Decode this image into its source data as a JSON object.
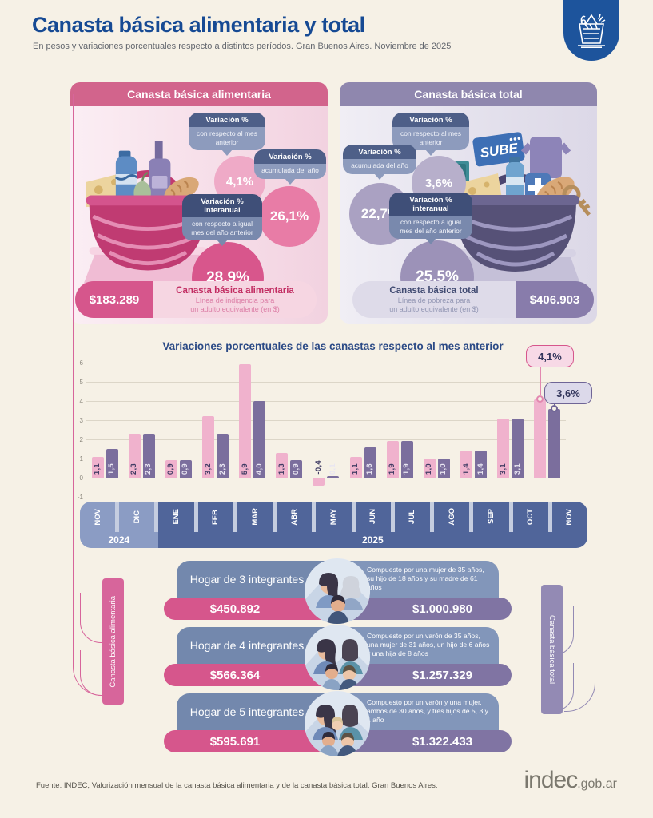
{
  "header": {
    "title": "Canasta básica alimentaria y total",
    "subtitle": "En pesos y variaciones porcentuales respecto a distintos períodos. Gran Buenos Aires. Noviembre de 2025"
  },
  "panels": {
    "alimentaria": {
      "title": "Canasta básica alimentaria",
      "variations": [
        {
          "title": "Variación %",
          "sub": "con respecto al mes anterior",
          "value": "4,1%"
        },
        {
          "title": "Variación %",
          "sub": "acumulada del año",
          "value": "26,1%"
        },
        {
          "title": "Variación % interanual",
          "sub": "con respecto a igual mes del año anterior",
          "value": "28,9%"
        }
      ],
      "amount": "$183.289",
      "footer_title": "Canasta básica alimentaria",
      "footer_sub1": "Línea de indigencia para",
      "footer_sub2": "un adulto equivalente (en $)"
    },
    "total": {
      "title": "Canasta básica total",
      "variations": [
        {
          "title": "Variación %",
          "sub": "con respecto al mes anterior",
          "value": "3,6%"
        },
        {
          "title": "Variación %",
          "sub": "acumulada del año",
          "value": "22,7%"
        },
        {
          "title": "Variación % interanual",
          "sub": "con respecto a igual mes del año anterior",
          "value": "25,5%"
        }
      ],
      "amount": "$406.903",
      "footer_title": "Canasta básica total",
      "footer_sub1": "Línea de pobreza para",
      "footer_sub2": "un adulto equivalente (en $)",
      "sube_label": "SUBE"
    }
  },
  "chart_data": {
    "type": "bar",
    "title": "Variaciones porcentuales de las canastas respecto al mes anterior",
    "categories": [
      "NOV",
      "DIC",
      "ENE",
      "FEB",
      "MAR",
      "ABR",
      "MAY",
      "JUN",
      "JUL",
      "AGO",
      "SEP",
      "OCT",
      "NOV"
    ],
    "year_groups": [
      {
        "label": "2024",
        "count": 2
      },
      {
        "label": "2025",
        "count": 11
      }
    ],
    "series": [
      {
        "name": "Canasta básica alimentaria",
        "color": "#f0b2cd",
        "values": [
          1.1,
          2.3,
          0.9,
          3.2,
          5.9,
          1.3,
          -0.4,
          1.1,
          1.9,
          1.0,
          1.4,
          3.1,
          4.1
        ]
      },
      {
        "name": "Canasta básica total",
        "color": "#7b6e9d",
        "values": [
          1.5,
          2.3,
          0.9,
          2.3,
          4.0,
          0.9,
          0.1,
          1.6,
          1.9,
          1.0,
          1.4,
          3.1,
          3.6
        ]
      }
    ],
    "bar_labels": [
      [
        "1,1",
        "1,5"
      ],
      [
        "2,3",
        "2,3"
      ],
      [
        "0,9",
        "0,9"
      ],
      [
        "3,2",
        "2,3"
      ],
      [
        "5,9",
        "4,0"
      ],
      [
        "1,3",
        "0,9"
      ],
      [
        "-0,4",
        "0,1"
      ],
      [
        "1,1",
        "1,6"
      ],
      [
        "1,9",
        "1,9"
      ],
      [
        "1,0",
        "1,0"
      ],
      [
        "1,4",
        "1,4"
      ],
      [
        "3,1",
        "3,1"
      ],
      null
    ],
    "callouts": [
      {
        "series": "Canasta básica alimentaria",
        "text": "4,1%"
      },
      {
        "series": "Canasta básica total",
        "text": "3,6%"
      }
    ],
    "ylim": [
      -1,
      6
    ],
    "yticks": [
      6,
      5,
      4,
      3,
      2,
      1,
      0,
      -1
    ],
    "grid": true,
    "legend": "none"
  },
  "households": {
    "left_ribbon": "Canasta básica alimentaria",
    "right_ribbon": "Canasta básica total",
    "rows": [
      {
        "title": "Hogar de 3 integrantes",
        "cba": "$450.892",
        "desc": "Compuesto por una mujer de 35 años, su hijo de 18 años y su madre de 61 años",
        "cbt": "$1.000.980"
      },
      {
        "title": "Hogar de 4 integrantes",
        "cba": "$566.364",
        "desc": "Compuesto por un varón de 35 años, una mujer de 31 años, un hijo de 6 años y una hija de 8 años",
        "cbt": "$1.257.329"
      },
      {
        "title": "Hogar de 5 integrantes",
        "cba": "$595.691",
        "desc": "Compuesto por un varón y una mujer, ambos de 30 años, y tres hijos de 5, 3 y 1 año",
        "cbt": "$1.322.433"
      }
    ]
  },
  "footer": {
    "source": "Fuente: INDEC, Valorización mensual de la canasta básica alimentaria y de la canasta básica total. Gran Buenos Aires.",
    "logo_main": "indec",
    "logo_suffix": ".gob.ar"
  },
  "colors": {
    "background": "#f6f1e6",
    "title_blue": "#164a94",
    "badge_blue": "#1d549c",
    "pink_header": "#d2648c",
    "pink_strong": "#d6568c",
    "purple_header": "#8f87ae",
    "purple_strong": "#8074a3",
    "bar_pink": "#f0b2cd",
    "bar_purple": "#7b6e9d",
    "axis_2024": "#8b9cc4",
    "axis_2025": "#50659a"
  }
}
